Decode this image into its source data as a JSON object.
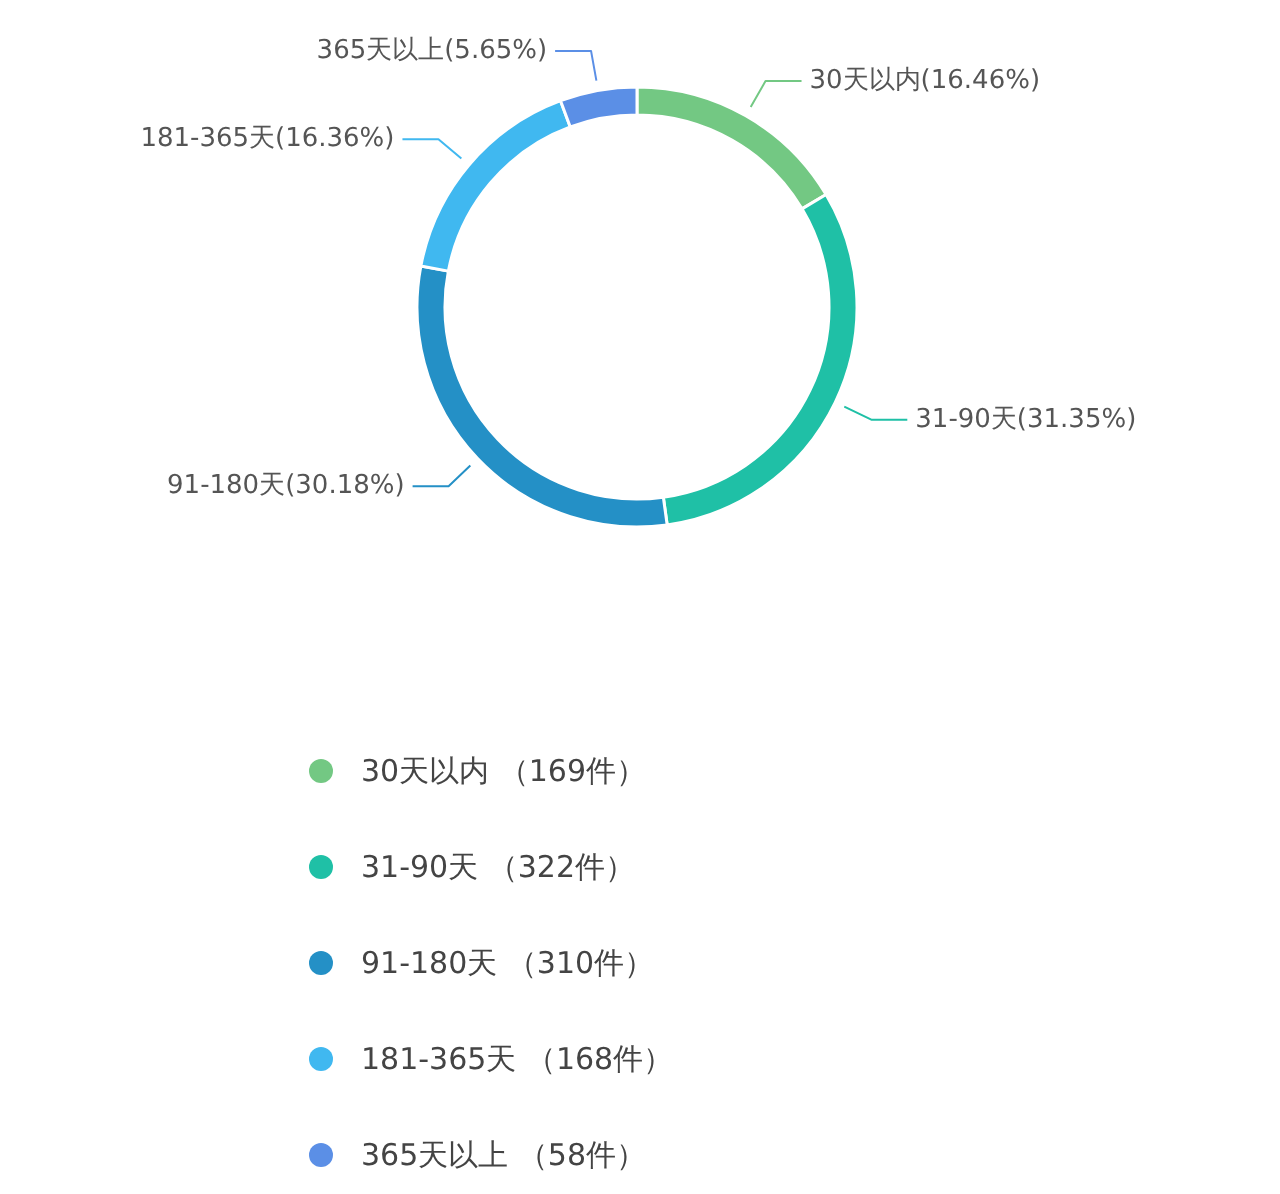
{
  "chart_data": {
    "type": "donut",
    "categories": [
      "30天以内 （169件）",
      "31-90天 （322件）",
      "91-180天 （310件）",
      "181-365天 （168件）",
      "365天以上 （58件）"
    ],
    "values": [
      16.46,
      31.35,
      30.18,
      16.36,
      5.65
    ],
    "colors": [
      "#73c883",
      "#1fc0a6",
      "#2490c6",
      "#40b8f0",
      "#5b8fe6"
    ],
    "value_labels": [
      "30天以内(16.46%)",
      "31-90天(31.35%)",
      "91-180天(30.18%)",
      "181-365天(16.36%)",
      "365天以上(5.65%)"
    ],
    "legend": "bottom"
  }
}
